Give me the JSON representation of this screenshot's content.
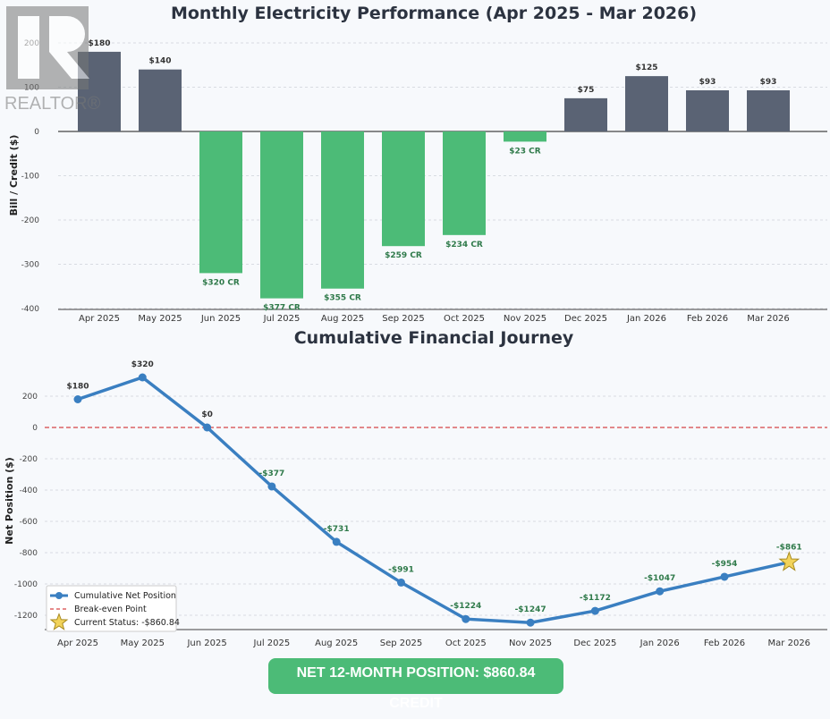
{
  "watermark": {
    "text": "REALTOR®"
  },
  "colors": {
    "bill": "#5a6374",
    "credit": "#4cbb77",
    "line": "#3a7fc1",
    "breakeven": "#d64545",
    "star": "#f2d35a",
    "credit_label": "#2f7a4a"
  },
  "chart_data": [
    {
      "type": "bar",
      "title": "Monthly Electricity Performance (Apr 2025 - Mar 2026)",
      "xlabel": "",
      "ylabel": "Bill / Credit ($)",
      "ylim": [
        -400,
        220
      ],
      "yticks": [
        200,
        100,
        0,
        -100,
        -200,
        -300,
        -400
      ],
      "grid": true,
      "categories": [
        "Apr 2025",
        "May 2025",
        "Jun 2025",
        "Jul 2025",
        "Aug 2025",
        "Sep 2025",
        "Oct 2025",
        "Nov 2025",
        "Dec 2025",
        "Jan 2026",
        "Feb 2026",
        "Mar 2026"
      ],
      "values": [
        180,
        140,
        -320,
        -377,
        -355,
        -259,
        -234,
        -23,
        75,
        125,
        93,
        93
      ],
      "labels": [
        "$180",
        "$140",
        "$320 CR",
        "$377 CR",
        "$355 CR",
        "$259 CR",
        "$234 CR",
        "$23 CR",
        "$75",
        "$125",
        "$93",
        "$93"
      ]
    },
    {
      "type": "line",
      "title": "Cumulative Financial Journey",
      "xlabel": "",
      "ylabel": "Net Position ($)",
      "ylim": [
        -1330,
        320
      ],
      "yticks": [
        200,
        0,
        -200,
        -400,
        -600,
        -800,
        -1000,
        -1200
      ],
      "grid": true,
      "categories": [
        "Apr 2025",
        "May 2025",
        "Jun 2025",
        "Jul 2025",
        "Aug 2025",
        "Sep 2025",
        "Oct 2025",
        "Nov 2025",
        "Dec 2025",
        "Jan 2026",
        "Feb 2026",
        "Mar 2026"
      ],
      "series": [
        {
          "name": "Cumulative Net Position",
          "values": [
            180,
            320,
            0,
            -377,
            -731,
            -991,
            -1224,
            -1247,
            -1172,
            -1047,
            -954,
            -860.84
          ]
        }
      ],
      "labels": [
        "$180",
        "$320",
        "$0",
        "-$377",
        "-$731",
        "-$991",
        "-$1224",
        "-$1247",
        "-$1172",
        "-$1047",
        "-$954",
        "-$861"
      ],
      "breakeven": {
        "name": "Break-even Point",
        "value": 0
      },
      "current": {
        "name": "Current Status: -$860.84"
      },
      "legend": "bottom-left"
    }
  ],
  "banner": {
    "text": "NET 12-MONTH POSITION: $860.84 CREDIT"
  }
}
